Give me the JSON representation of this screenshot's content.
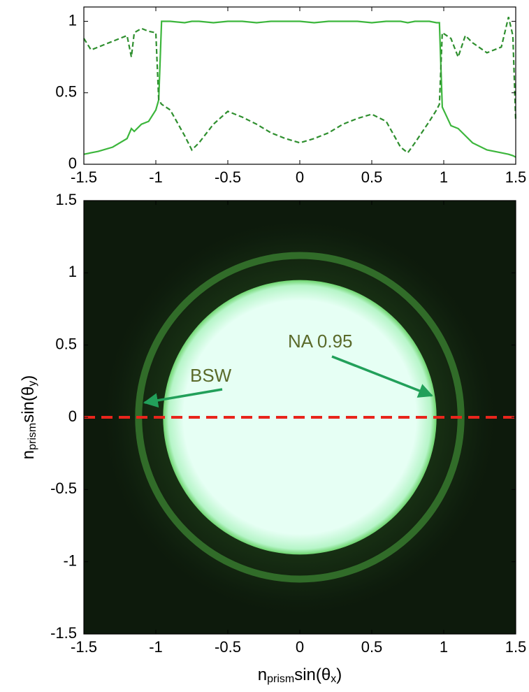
{
  "chart_data": [
    {
      "type": "line",
      "x": [
        -1.5,
        -1.45,
        -1.4,
        -1.3,
        -1.2,
        -1.17,
        -1.15,
        -1.1,
        -1.05,
        -1.0,
        -0.98,
        -0.96,
        -0.9,
        -0.8,
        -0.75,
        -0.7,
        -0.6,
        -0.5,
        -0.4,
        -0.3,
        -0.2,
        -0.1,
        0,
        0.1,
        0.2,
        0.3,
        0.4,
        0.5,
        0.6,
        0.7,
        0.75,
        0.8,
        0.9,
        0.95,
        0.97,
        0.99,
        1.05,
        1.1,
        1.15,
        1.2,
        1.3,
        1.4,
        1.45,
        1.48,
        1.5
      ],
      "series": [
        {
          "color": "#3cb63c",
          "dash": false,
          "values": [
            0.07,
            0.08,
            0.09,
            0.12,
            0.18,
            0.25,
            0.23,
            0.28,
            0.3,
            0.38,
            0.45,
            1.0,
            1.0,
            0.99,
            1.0,
            1.0,
            0.99,
            1.0,
            1.0,
            0.99,
            1.0,
            1.0,
            1.0,
            0.99,
            1.0,
            1.0,
            1.0,
            0.99,
            1.0,
            1.0,
            0.99,
            1.0,
            1.0,
            0.99,
            0.99,
            0.4,
            0.27,
            0.25,
            0.2,
            0.15,
            0.1,
            0.08,
            0.07,
            0.06,
            0.05
          ]
        },
        {
          "color": "#2f8f2f",
          "dash": true,
          "values": [
            0.88,
            0.8,
            0.82,
            0.86,
            0.9,
            0.75,
            0.92,
            0.95,
            0.93,
            0.92,
            0.45,
            0.42,
            0.38,
            0.2,
            0.1,
            0.15,
            0.28,
            0.37,
            0.33,
            0.28,
            0.22,
            0.18,
            0.15,
            0.18,
            0.22,
            0.28,
            0.32,
            0.35,
            0.3,
            0.12,
            0.08,
            0.15,
            0.3,
            0.38,
            0.42,
            0.92,
            0.88,
            0.75,
            0.9,
            0.85,
            0.78,
            0.82,
            1.03,
            0.9,
            0.3
          ]
        }
      ],
      "xlim": [
        -1.5,
        1.5
      ],
      "xticks": [
        -1.5,
        -1,
        -0.5,
        0,
        0.5,
        1,
        1.5
      ],
      "ylim": [
        0,
        1.1
      ],
      "yticks": [
        0,
        0.5,
        1
      ]
    },
    {
      "type": "image",
      "xlabel": [
        "n",
        "prism",
        "sin(θ",
        "x",
        ")"
      ],
      "ylabel": [
        "n",
        "prism",
        "sin(θ",
        "y",
        ")"
      ],
      "xlim": [
        -1.5,
        1.5
      ],
      "xticks": [
        -1.5,
        -1,
        -0.5,
        0,
        0.5,
        1,
        1.5
      ],
      "ylim": [
        -1.5,
        1.5
      ],
      "yticks": [
        -1.5,
        -1,
        -0.5,
        0,
        0.5,
        1,
        1.5
      ],
      "background": "#0d1a0c",
      "disk_radius": 0.95,
      "disk_color": "#e6fff4",
      "ring_radius": 1.12,
      "ring_color": "#3f8a35",
      "hline": 0,
      "hline_color": "#e8251c",
      "annotations": [
        "NA 0.95",
        "BSW"
      ]
    }
  ]
}
